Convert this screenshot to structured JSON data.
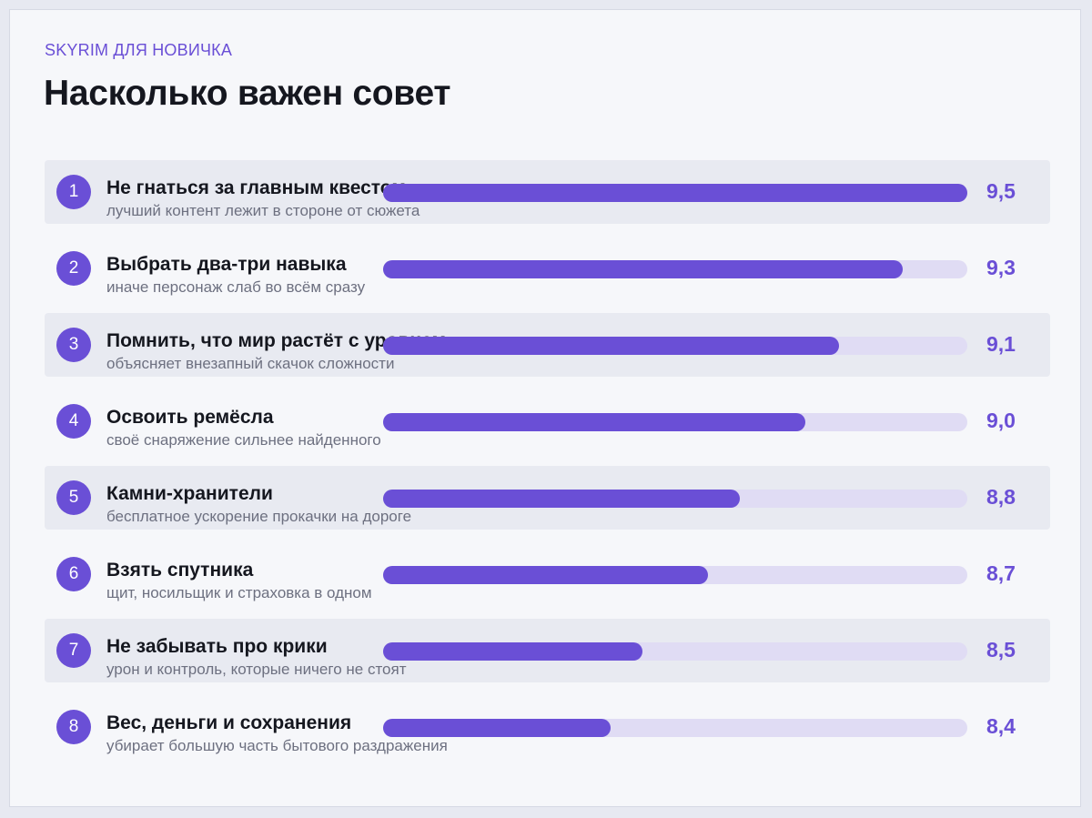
{
  "header": {
    "kicker": "SKYRIM ДЛЯ НОВИЧКА",
    "title": "Насколько важен совет"
  },
  "colors": {
    "accent": "#6a4fd6",
    "track": "#e0dcf4",
    "shaded_row": "#e8eaf1"
  },
  "chart_data": {
    "type": "bar",
    "orientation": "horizontal",
    "xlim": [
      0,
      9.5
    ],
    "value_format": "comma-decimal",
    "categories": [
      "Не гнаться за главным квестом",
      "Выбрать два-три навыка",
      "Помнить, что мир растёт с уровнем",
      "Освоить ремёсла",
      "Камни-хранители",
      "Взять спутника",
      "Не забывать про крики",
      "Вес, деньги и сохранения"
    ],
    "values": [
      9.5,
      9.3,
      9.1,
      9.0,
      8.8,
      8.7,
      8.5,
      8.4
    ],
    "items": [
      {
        "rank": "1",
        "label": "Не гнаться за главным квестом",
        "note": "лучший контент лежит в стороне от сюжета",
        "value": 9.5,
        "value_label": "9,5",
        "fill": 1.0
      },
      {
        "rank": "2",
        "label": "Выбрать два-три навыка",
        "note": "иначе персонаж слаб во всём сразу",
        "value": 9.3,
        "value_label": "9,3",
        "fill": 0.89
      },
      {
        "rank": "3",
        "label": "Помнить, что мир растёт с уровнем",
        "note": "объясняет внезапный скачок сложности",
        "value": 9.1,
        "value_label": "9,1",
        "fill": 0.78
      },
      {
        "rank": "4",
        "label": "Освоить ремёсла",
        "note": "своё снаряжение сильнее найденного",
        "value": 9.0,
        "value_label": "9,0",
        "fill": 0.722
      },
      {
        "rank": "5",
        "label": "Камни-хранители",
        "note": "бесплатное ускорение прокачки на дороге",
        "value": 8.8,
        "value_label": "8,8",
        "fill": 0.611
      },
      {
        "rank": "6",
        "label": "Взять спутника",
        "note": "щит, носильщик и страховка в одном",
        "value": 8.7,
        "value_label": "8,7",
        "fill": 0.556
      },
      {
        "rank": "7",
        "label": "Не забывать про крики",
        "note": "урон и контроль, которые ничего не стоят",
        "value": 8.5,
        "value_label": "8,5",
        "fill": 0.444
      },
      {
        "rank": "8",
        "label": "Вес, деньги и сохранения",
        "note": "убирает большую часть бытового раздражения",
        "value": 8.4,
        "value_label": "8,4",
        "fill": 0.389
      }
    ]
  }
}
